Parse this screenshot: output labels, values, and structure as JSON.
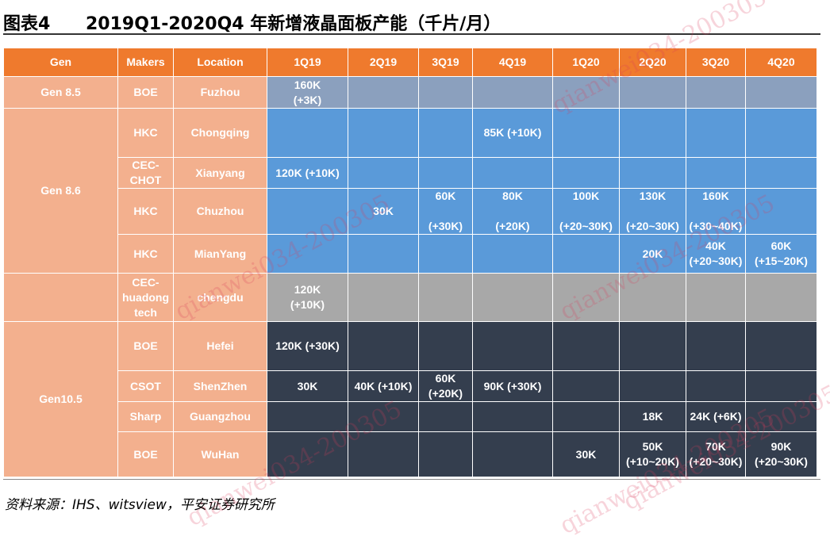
{
  "figure": {
    "label": "图表4",
    "title": "2019Q1-2020Q4 年新增液晶面板产能（千片/月）"
  },
  "table": {
    "headers": [
      "Gen",
      "Makers",
      "Location",
      "1Q19",
      "2Q19",
      "3Q19",
      "4Q19",
      "1Q20",
      "2Q20",
      "3Q20",
      "4Q20"
    ],
    "groups": [
      {
        "gen": "Gen 8.5",
        "rows": [
          {
            "maker": "BOE",
            "location": "Fuzhou",
            "cells": [
              "160K\n(+3K)",
              "",
              "",
              "",
              "",
              "",
              "",
              ""
            ]
          }
        ]
      },
      {
        "gen": "Gen 8.6",
        "rows": [
          {
            "maker": "HKC",
            "location": "Chongqing",
            "cells": [
              "",
              "",
              "",
              "85K (+10K)",
              "",
              "",
              "",
              ""
            ]
          },
          {
            "maker": "CEC-\nCHOT",
            "location": "Xianyang",
            "cells": [
              "120K (+10K)",
              "",
              "",
              "",
              "",
              "",
              "",
              ""
            ]
          },
          {
            "maker": "HKC",
            "location": "Chuzhou",
            "cells": [
              "",
              "30K",
              "60K\n\n(+30K)",
              "80K\n\n(+20K)",
              "100K\n\n(+20~30K)",
              "130K\n\n(+20~30K)",
              "160K\n\n(+30~40K)",
              ""
            ]
          },
          {
            "maker": "HKC",
            "location": "MianYang",
            "cells": [
              "",
              "",
              "",
              "",
              "",
              "20K",
              "40K\n(+20~30K)",
              "60K\n(+15~20K)"
            ]
          },
          {
            "maker": "CEC-\nhuadong\ntech",
            "location": "chengdu",
            "cells": [
              "120K\n(+10K)",
              "",
              "",
              "",
              "",
              "",
              "",
              ""
            ]
          }
        ]
      },
      {
        "gen": "Gen10.5",
        "rows": [
          {
            "maker": "BOE",
            "location": "Hefei",
            "cells": [
              "120K (+30K)",
              "",
              "",
              "",
              "",
              "",
              "",
              ""
            ]
          },
          {
            "maker": "CSOT",
            "location": "ShenZhen",
            "cells": [
              "30K",
              "40K (+10K)",
              "60K\n(+20K)",
              "90K (+30K)",
              "",
              "",
              "",
              ""
            ]
          },
          {
            "maker": "Sharp",
            "location": "Guangzhou",
            "cells": [
              "",
              "",
              "",
              "",
              "",
              "18K",
              "24K (+6K)",
              ""
            ]
          },
          {
            "maker": "BOE",
            "location": "WuHan",
            "cells": [
              "",
              "",
              "",
              "",
              "30K",
              "50K\n(+10~20K)",
              "70K\n(+20~30K)",
              "90K\n(+20~30K)"
            ]
          }
        ]
      }
    ]
  },
  "source": "资料来源：IHS、witsview，平安证券研究所",
  "watermark": "qianwei034-200305",
  "colors": {
    "header": "#ef7a2d",
    "label_cells": "#f3b08e",
    "gen85_row": "#8ba0be",
    "gen86_rows": "#5a9ad9",
    "chengdu_row": "#a8a8a8",
    "gen105_rows": "#343e4e"
  }
}
